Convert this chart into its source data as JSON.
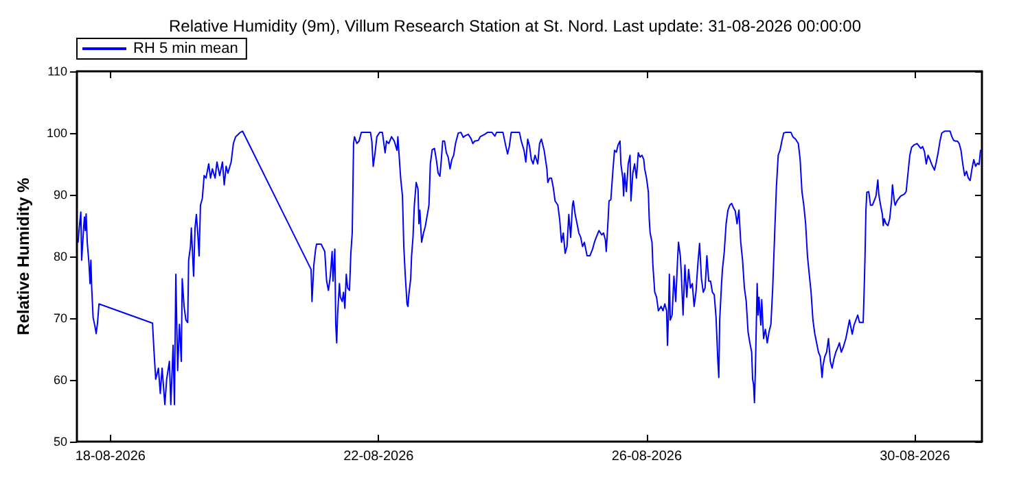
{
  "chart_data": {
    "type": "line",
    "title": "Relative Humidity (9m), Villum Research Station at St. Nord. Last update: 31-08-2026 00:00:00",
    "ylabel": "Relative Humidity %",
    "xlim": [
      "2026-08-17T12:00",
      "2026-08-31T00:00"
    ],
    "xticks": [
      {
        "value": "2026-08-18",
        "label": "18-08-2026"
      },
      {
        "value": "2026-08-22",
        "label": "22-08-2026"
      },
      {
        "value": "2026-08-26",
        "label": "26-08-2026"
      },
      {
        "value": "2026-08-30",
        "label": "30-08-2026"
      }
    ],
    "ylim": [
      50,
      110
    ],
    "yticks": [
      50,
      60,
      70,
      80,
      90,
      100,
      110
    ],
    "grid": false,
    "legend": "top left",
    "marker": "none",
    "line_style": "solid",
    "series": [
      {
        "name": "RH 5 min mean",
        "color": "#0000ff",
        "x": [
          "2026-08-17T12:24",
          "2026-08-17T12:54",
          "2026-08-17T13:24",
          "2026-08-17T13:42",
          "2026-08-17T14:24",
          "2026-08-17T14:42",
          "2026-08-17T15:00",
          "2026-08-17T15:18",
          "2026-08-17T15:42",
          "2026-08-17T16:18",
          "2026-08-17T16:42",
          "2026-08-17T17:00",
          "2026-08-17T17:18",
          "2026-08-17T17:48",
          "2026-08-17T18:30",
          "2026-08-17T18:54",
          "2026-08-17T19:24",
          "2026-08-17T19:54",
          "2026-08-17T20:36",
          "2026-08-18T15:04",
          "2026-08-18T15:34",
          "2026-08-18T16:13",
          "2026-08-18T17:11",
          "2026-08-18T17:51",
          "2026-08-18T18:30",
          "2026-08-18T19:29",
          "2026-08-18T20:08",
          "2026-08-18T21:07",
          "2026-08-18T21:37",
          "2026-08-18T22:26",
          "2026-08-18T22:55",
          "2026-08-18T23:25",
          "2026-08-19T00:04",
          "2026-08-19T00:43",
          "2026-08-19T01:22",
          "2026-08-19T01:42",
          "2026-08-19T02:22",
          "2026-08-19T03:01",
          "2026-08-19T03:40",
          "2026-08-19T04:00",
          "2026-08-19T04:39",
          "2026-08-19T04:58",
          "2026-08-19T05:47",
          "2026-08-19T06:17",
          "2026-08-19T06:46",
          "2026-08-19T07:16",
          "2026-08-19T07:45",
          "2026-08-19T08:14",
          "2026-08-19T08:54",
          "2026-08-19T09:33",
          "2026-08-19T10:13",
          "2026-08-19T11:11",
          "2026-08-19T11:50",
          "2026-08-19T12:30",
          "2026-08-19T13:29",
          "2026-08-19T14:08",
          "2026-08-19T15:07",
          "2026-08-19T16:06",
          "2026-08-19T16:45",
          "2026-08-19T17:25",
          "2026-08-19T18:04",
          "2026-08-19T19:13",
          "2026-08-19T20:01",
          "2026-08-19T20:50",
          "2026-08-19T22:29",
          "2026-08-19T23:18",
          "2026-08-20T23:50",
          "2026-08-21T00:10",
          "2026-08-21T00:49",
          "2026-08-21T01:28",
          "2026-08-21T01:48",
          "2026-08-21T03:26",
          "2026-08-21T04:44",
          "2026-08-21T05:24",
          "2026-08-21T06:03",
          "2026-08-21T06:43",
          "2026-08-21T07:22",
          "2026-08-21T07:41",
          "2026-08-21T08:20",
          "2026-08-21T08:40",
          "2026-08-21T09:00",
          "2026-08-21T09:19",
          "2026-08-21T09:59",
          "2026-08-21T10:19",
          "2026-08-21T10:58",
          "2026-08-21T11:27",
          "2026-08-21T11:56",
          "2026-08-21T12:26",
          "2026-08-21T12:55",
          "2026-08-21T13:35",
          "2026-08-21T14:04",
          "2026-08-21T14:34",
          "2026-08-21T15:03",
          "2026-08-21T15:23",
          "2026-08-21T16:12",
          "2026-08-21T17:01",
          "2026-08-21T17:50",
          "2026-08-21T21:06",
          "2026-08-21T21:35",
          "2026-08-21T22:05",
          "2026-08-21T22:44",
          "2026-08-21T23:23",
          "2026-08-22T00:23",
          "2026-08-22T01:22",
          "2026-08-22T02:20",
          "2026-08-22T02:50",
          "2026-08-22T03:39",
          "2026-08-22T04:38",
          "2026-08-22T05:37",
          "2026-08-22T06:35",
          "2026-08-22T06:54",
          "2026-08-22T07:54",
          "2026-08-22T08:33",
          "2026-08-22T09:02",
          "2026-08-22T09:32",
          "2026-08-22T10:11",
          "2026-08-22T10:31",
          "2026-08-22T10:50",
          "2026-08-22T11:30",
          "2026-08-22T11:49",
          "2026-08-22T12:19",
          "2026-08-22T12:48",
          "2026-08-22T13:28",
          "2026-08-22T14:07",
          "2026-08-22T14:26",
          "2026-08-22T14:46",
          "2026-08-22T15:25",
          "2026-08-22T16:05",
          "2026-08-22T16:44",
          "2026-08-22T18:02",
          "2026-08-22T18:32",
          "2026-08-22T19:11",
          "2026-08-22T20:00",
          "2026-08-22T20:40",
          "2026-08-22T21:19",
          "2026-08-22T21:58",
          "2026-08-22T22:28",
          "2026-08-22T22:57",
          "2026-08-22T23:36",
          "2026-08-23T00:16",
          "2026-08-23T00:55",
          "2026-08-23T01:34",
          "2026-08-23T02:13",
          "2026-08-23T02:53",
          "2026-08-23T03:32",
          "2026-08-23T04:31",
          "2026-08-23T05:29",
          "2026-08-23T06:19",
          "2026-08-23T07:08",
          "2026-08-23T08:07",
          "2026-08-23T09:05",
          "2026-08-23T09:45",
          "2026-08-23T10:24",
          "2026-08-23T11:43",
          "2026-08-23T12:22",
          "2026-08-23T14:00",
          "2026-08-23T14:59",
          "2026-08-23T16:37",
          "2026-08-23T17:36",
          "2026-08-23T18:15",
          "2026-08-23T20:32",
          "2026-08-23T21:32",
          "2026-08-23T22:11",
          "2026-08-23T22:50",
          "2026-08-23T23:29",
          "2026-08-24T02:26",
          "2026-08-24T03:05",
          "2026-08-24T04:04",
          "2026-08-24T04:43",
          "2026-08-24T05:23",
          "2026-08-24T06:02",
          "2026-08-24T06:41",
          "2026-08-24T07:20",
          "2026-08-24T08:00",
          "2026-08-24T08:59",
          "2026-08-24T09:38",
          "2026-08-24T10:17",
          "2026-08-24T11:16",
          "2026-08-24T12:15",
          "2026-08-24T12:35",
          "2026-08-24T13:14",
          "2026-08-24T13:53",
          "2026-08-24T14:32",
          "2026-08-24T15:11",
          "2026-08-24T16:11",
          "2026-08-24T16:50",
          "2026-08-24T17:29",
          "2026-08-24T18:08",
          "2026-08-24T18:47",
          "2026-08-24T19:27",
          "2026-08-24T20:06",
          "2026-08-24T20:46",
          "2026-08-24T21:25",
          "2026-08-24T21:44",
          "2026-08-24T22:23",
          "2026-08-24T23:03",
          "2026-08-24T23:42",
          "2026-08-25T00:22",
          "2026-08-25T01:01",
          "2026-08-25T01:40",
          "2026-08-25T02:39",
          "2026-08-25T03:38",
          "2026-08-25T04:37",
          "2026-08-25T05:16",
          "2026-08-25T05:55",
          "2026-08-25T06:54",
          "2026-08-25T07:53",
          "2026-08-25T08:32",
          "2026-08-25T09:11",
          "2026-08-25T09:31",
          "2026-08-25T10:10",
          "2026-08-25T10:30",
          "2026-08-25T11:09",
          "2026-08-25T11:49",
          "2026-08-25T12:28",
          "2026-08-25T13:07",
          "2026-08-25T13:46",
          "2026-08-25T14:26",
          "2026-08-25T14:45",
          "2026-08-25T15:25",
          "2026-08-25T15:44",
          "2026-08-25T16:04",
          "2026-08-25T16:43",
          "2026-08-25T17:22",
          "2026-08-25T18:01",
          "2026-08-25T18:21",
          "2026-08-25T19:01",
          "2026-08-25T19:40",
          "2026-08-25T20:19",
          "2026-08-25T20:58",
          "2026-08-25T21:37",
          "2026-08-25T22:17",
          "2026-08-25T22:56",
          "2026-08-25T23:16",
          "2026-08-25T23:55",
          "2026-08-26T00:34",
          "2026-08-26T00:54",
          "2026-08-26T01:13",
          "2026-08-26T01:53",
          "2026-08-26T02:12",
          "2026-08-26T02:32",
          "2026-08-26T02:52",
          "2026-08-26T03:31",
          "2026-08-26T04:10",
          "2026-08-26T05:09",
          "2026-08-26T05:48",
          "2026-08-26T06:28",
          "2026-08-26T07:07",
          "2026-08-26T07:26",
          "2026-08-26T07:46",
          "2026-08-26T08:06",
          "2026-08-26T08:25",
          "2026-08-26T09:05",
          "2026-08-26T09:44",
          "2026-08-26T10:23",
          "2026-08-26T11:02",
          "2026-08-26T11:22",
          "2026-08-26T12:01",
          "2026-08-26T12:21",
          "2026-08-26T13:00",
          "2026-08-26T13:40",
          "2026-08-26T14:20",
          "2026-08-26T15:00",
          "2026-08-26T15:39",
          "2026-08-26T16:19",
          "2026-08-26T16:58",
          "2026-08-26T17:37",
          "2026-08-26T18:16",
          "2026-08-26T18:55",
          "2026-08-26T19:35",
          "2026-08-26T20:14",
          "2026-08-26T20:53",
          "2026-08-26T21:32",
          "2026-08-26T22:12",
          "2026-08-26T22:51",
          "2026-08-26T23:30",
          "2026-08-27T00:10",
          "2026-08-27T00:49",
          "2026-08-27T01:28",
          "2026-08-27T01:48",
          "2026-08-27T02:07",
          "2026-08-27T02:47",
          "2026-08-27T03:06",
          "2026-08-27T03:46",
          "2026-08-27T04:25",
          "2026-08-27T05:04",
          "2026-08-27T05:43",
          "2026-08-27T06:23",
          "2026-08-27T07:02",
          "2026-08-27T07:41",
          "2026-08-27T08:20",
          "2026-08-27T09:00",
          "2026-08-27T09:39",
          "2026-08-27T10:18",
          "2026-08-27T10:58",
          "2026-08-27T11:37",
          "2026-08-27T12:16",
          "2026-08-27T12:55",
          "2026-08-27T13:34",
          "2026-08-27T13:54",
          "2026-08-27T14:14",
          "2026-08-27T14:34",
          "2026-08-27T14:53",
          "2026-08-27T15:32",
          "2026-08-27T15:52",
          "2026-08-27T16:11",
          "2026-08-27T16:51",
          "2026-08-27T17:10",
          "2026-08-27T17:50",
          "2026-08-27T18:29",
          "2026-08-27T19:08",
          "2026-08-27T19:47",
          "2026-08-27T20:27",
          "2026-08-27T21:06",
          "2026-08-27T21:45",
          "2026-08-27T22:25",
          "2026-08-27T23:04",
          "2026-08-27T23:43",
          "2026-08-28T00:22",
          "2026-08-28T01:02",
          "2026-08-28T01:41",
          "2026-08-28T03:38",
          "2026-08-28T04:18",
          "2026-08-28T05:17",
          "2026-08-28T06:16",
          "2026-08-28T06:55",
          "2026-08-28T07:34",
          "2026-08-28T08:14",
          "2026-08-28T08:53",
          "2026-08-28T09:32",
          "2026-08-28T10:11",
          "2026-08-28T10:50",
          "2026-08-28T11:30",
          "2026-08-28T12:09",
          "2026-08-28T12:49",
          "2026-08-28T13:28",
          "2026-08-28T14:07",
          "2026-08-28T14:46",
          "2026-08-28T15:06",
          "2026-08-28T15:45",
          "2026-08-28T16:24",
          "2026-08-28T17:04",
          "2026-08-28T17:43",
          "2026-08-28T18:22",
          "2026-08-28T19:01",
          "2026-08-28T19:41",
          "2026-08-28T20:20",
          "2026-08-28T20:59",
          "2026-08-28T21:38",
          "2026-08-28T22:17",
          "2026-08-28T23:17",
          "2026-08-28T23:56",
          "2026-08-29T00:35",
          "2026-08-29T01:34",
          "2026-08-29T02:13",
          "2026-08-29T02:53",
          "2026-08-29T03:32",
          "2026-08-29T04:11",
          "2026-08-29T05:29",
          "2026-08-29T05:49",
          "2026-08-29T06:09",
          "2026-08-29T06:28",
          "2026-08-29T06:48",
          "2026-08-29T07:28",
          "2026-08-29T08:07",
          "2026-08-29T08:46",
          "2026-08-29T09:25",
          "2026-08-29T10:04",
          "2026-08-29T10:44",
          "2026-08-29T11:04",
          "2026-08-29T11:43",
          "2026-08-29T12:22",
          "2026-08-29T12:41",
          "2026-08-29T13:01",
          "2026-08-29T13:40",
          "2026-08-29T14:20",
          "2026-08-29T14:59",
          "2026-08-29T15:38",
          "2026-08-29T15:58",
          "2026-08-29T16:37",
          "2026-08-29T16:56",
          "2026-08-29T17:36",
          "2026-08-29T18:15",
          "2026-08-29T18:55",
          "2026-08-29T20:13",
          "2026-08-29T20:52",
          "2026-08-29T21:32",
          "2026-08-29T22:11",
          "2026-08-29T22:50",
          "2026-08-29T23:49",
          "2026-08-30T00:48",
          "2026-08-30T01:27",
          "2026-08-30T02:07",
          "2026-08-30T02:46",
          "2026-08-30T03:25",
          "2026-08-30T04:04",
          "2026-08-30T04:43",
          "2026-08-30T05:23",
          "2026-08-30T06:02",
          "2026-08-30T07:01",
          "2026-08-30T07:40",
          "2026-08-30T08:19",
          "2026-08-30T08:59",
          "2026-08-30T09:38",
          "2026-08-30T10:37",
          "2026-08-30T12:35",
          "2026-08-30T13:14",
          "2026-08-30T13:53",
          "2026-08-30T14:32",
          "2026-08-30T15:11",
          "2026-08-30T15:51",
          "2026-08-30T16:30",
          "2026-08-30T17:10",
          "2026-08-30T17:49",
          "2026-08-30T18:28",
          "2026-08-30T19:07",
          "2026-08-30T19:47",
          "2026-08-30T20:26",
          "2026-08-30T21:05",
          "2026-08-30T21:44",
          "2026-08-30T22:23",
          "2026-08-30T22:59",
          "2026-08-30T23:30"
        ],
        "values": [
          82.3,
          84.9,
          87.2,
          79.4,
          84.6,
          86.4,
          84.2,
          86.9,
          82.3,
          79,
          75.6,
          79.4,
          74.9,
          70.1,
          68.6,
          67.5,
          69.3,
          72.3,
          72.2,
          69.2,
          64.9,
          60.1,
          61.9,
          57.8,
          61.9,
          56,
          60.1,
          63,
          56,
          65.6,
          56,
          77.1,
          61.5,
          69,
          63,
          76.4,
          71.9,
          69.7,
          69.3,
          79.4,
          81.6,
          84.6,
          76.8,
          84.6,
          86.8,
          83.8,
          80.1,
          88.3,
          89.4,
          93.1,
          92.7,
          95,
          92.7,
          94.2,
          92.7,
          95.3,
          93.1,
          95.3,
          91.6,
          94.6,
          93.5,
          95.3,
          98.3,
          99.4,
          100.1,
          100.3,
          77.9,
          72.7,
          78.6,
          81.2,
          82,
          82,
          80.8,
          76,
          74.5,
          76.8,
          80.8,
          76,
          81.2,
          69,
          66,
          70.5,
          75.6,
          73.4,
          72.7,
          74.2,
          71.6,
          77.1,
          74.9,
          74.5,
          80.5,
          83.8,
          98.3,
          99.4,
          98.3,
          98.7,
          100.1,
          100.1,
          98.7,
          94.6,
          96.8,
          99.4,
          100.1,
          100.1,
          96.8,
          98.7,
          98.3,
          99.4,
          98.7,
          97.2,
          99.4,
          92.7,
          89.8,
          81.6,
          77.1,
          72.3,
          71.9,
          73.8,
          76.4,
          80.1,
          83.1,
          88.3,
          92,
          90.9,
          85.3,
          87.5,
          82.3,
          83.8,
          84.9,
          88.3,
          95,
          97.3,
          97.5,
          95.7,
          93.5,
          93,
          95.7,
          98.7,
          98.7,
          96.8,
          96.1,
          94.2,
          95.7,
          96.4,
          98.3,
          100,
          100.1,
          99.3,
          99.6,
          99.8,
          99.1,
          98.3,
          98.7,
          98.8,
          99.4,
          99.8,
          100.1,
          100.1,
          99.5,
          100.1,
          100.1,
          97.9,
          96.6,
          97.9,
          100.1,
          100.1,
          98.7,
          97.2,
          95.3,
          99,
          97.9,
          95.7,
          95,
          96.4,
          95,
          98.3,
          99,
          97.2,
          94.2,
          92,
          92.7,
          92.7,
          91.2,
          89,
          88.3,
          86,
          82.3,
          83.8,
          80.5,
          81.6,
          86.8,
          83.1,
          88.3,
          89,
          86.8,
          85.3,
          83.8,
          83.1,
          81.6,
          82.3,
          80.1,
          80.1,
          81.2,
          82.3,
          83.1,
          84.2,
          83.5,
          83.8,
          82.7,
          80.8,
          86,
          89,
          89.2,
          93.5,
          97.2,
          96.9,
          98.1,
          98.7,
          95,
          92.7,
          89.8,
          93.5,
          90.5,
          95,
          96.4,
          89,
          93.5,
          95,
          92.7,
          96.8,
          96.1,
          96.4,
          95.7,
          94.2,
          92.7,
          90.5,
          86,
          83.8,
          82.3,
          78.6,
          76.4,
          74.2,
          73.4,
          71.2,
          71.9,
          71.2,
          72.3,
          71.2,
          65.6,
          70.5,
          77.1,
          69.7,
          70.5,
          76.8,
          72.7,
          79.4,
          82.3,
          80.1,
          77.5,
          70.5,
          78.6,
          73.4,
          77.9,
          74.9,
          75.6,
          71.9,
          74.2,
          78.6,
          82.1,
          76.4,
          74.2,
          74.9,
          80.1,
          76,
          76,
          74.2,
          73.8,
          70.1,
          63,
          60.4,
          69.7,
          75.6,
          77.9,
          80.8,
          85.3,
          87.5,
          88.3,
          88.6,
          87.9,
          87.4,
          85.3,
          87.5,
          82.3,
          79.4,
          74.9,
          72.7,
          67.8,
          66,
          64.5,
          60.1,
          59.3,
          56.3,
          61.5,
          75.6,
          70.5,
          73.4,
          68.9,
          73,
          66.7,
          68.2,
          66,
          67.8,
          69,
          74.9,
          83.1,
          91.2,
          96.4,
          97.2,
          98.7,
          100,
          100.1,
          100.1,
          99.4,
          99,
          98.3,
          95.7,
          90.5,
          88.3,
          85.3,
          80.1,
          77.1,
          74.2,
          69.7,
          67.5,
          66,
          64.5,
          63.8,
          60.4,
          62.3,
          63.8,
          64.5,
          66.7,
          63,
          61.9,
          63.4,
          64.5,
          65.2,
          66,
          64.5,
          65.2,
          66.7,
          68.2,
          69.7,
          67.4,
          68.9,
          69.7,
          70.5,
          69.3,
          69.3,
          74.2,
          80.1,
          87.5,
          90.4,
          90.5,
          88.3,
          88.3,
          89,
          89.8,
          92.4,
          90.1,
          88.3,
          86.8,
          85,
          86.1,
          85.3,
          85,
          86.1,
          89,
          91.6,
          89,
          88.3,
          89,
          89.4,
          89.8,
          90.1,
          90.5,
          93.5,
          96.4,
          97.7,
          98.1,
          98.3,
          97.9,
          97.5,
          97.8,
          97,
          95,
          96.4,
          95.7,
          94.9,
          94,
          95.3,
          96.8,
          98.7,
          100,
          100.3,
          100.3,
          99.4,
          98.8,
          98.7,
          98.7,
          98.3,
          97.2,
          94.9,
          93.1,
          93.8,
          92.7,
          92.3,
          94.2,
          95.7,
          94.6,
          95.1,
          94.9,
          97.2
        ]
      }
    ]
  }
}
